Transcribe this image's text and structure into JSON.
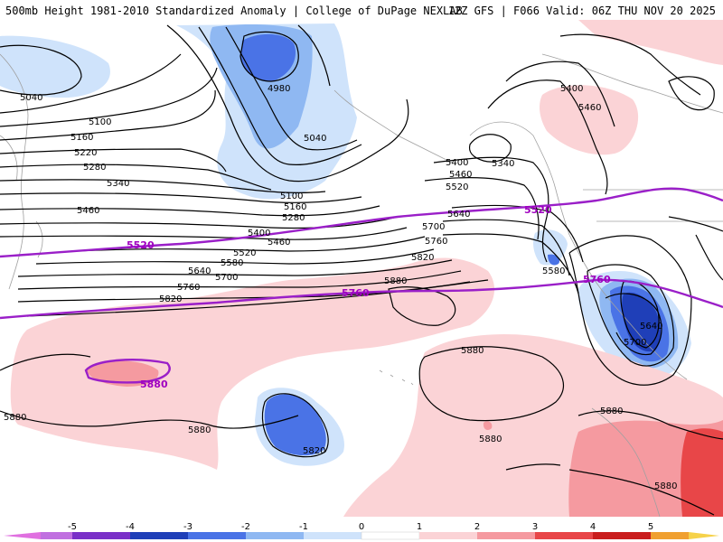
{
  "header": {
    "title_left": "500mb Height 1981-2010 Standardized Anomaly | College of DuPage NEXLAB",
    "title_right": "12Z GFS | F066 Valid: 06Z THU NOV 20 2025"
  },
  "colors": {
    "neg_1": "#cfe3fb",
    "neg_2": "#8fb8f2",
    "neg_3": "#4a73e6",
    "neg_4": "#1f3fb8",
    "pos_1": "#fbd3d6",
    "pos_2": "#f59aa0",
    "pos_3": "#e84648",
    "pos_4": "#c91d1d",
    "climo_line": "#9a1fc8",
    "land_outline": "#a0a0a0"
  },
  "map": {
    "contour_labels": [
      "5040",
      "5100",
      "5160",
      "5220",
      "5280",
      "5340",
      "5460",
      "4980",
      "5040",
      "5100",
      "5160",
      "5280",
      "5400",
      "5460",
      "5520",
      "5580",
      "5640",
      "5700",
      "5760",
      "5820",
      "5880",
      "5400",
      "5460",
      "5520",
      "5340",
      "5580",
      "5640",
      "5700",
      "5760",
      "5820",
      "5880",
      "5880",
      "5880",
      "5820",
      "5880",
      "5880",
      "5880",
      "5880",
      "5640",
      "5700",
      "5400",
      "5460"
    ],
    "climo_labels": [
      "5520",
      "5520",
      "5760",
      "5760",
      "5760",
      "5880"
    ]
  },
  "colorbar": {
    "ticks": [
      "-5",
      "-4",
      "-3",
      "-2",
      "-1",
      "0",
      "1",
      "2",
      "3",
      "4",
      "5"
    ]
  }
}
